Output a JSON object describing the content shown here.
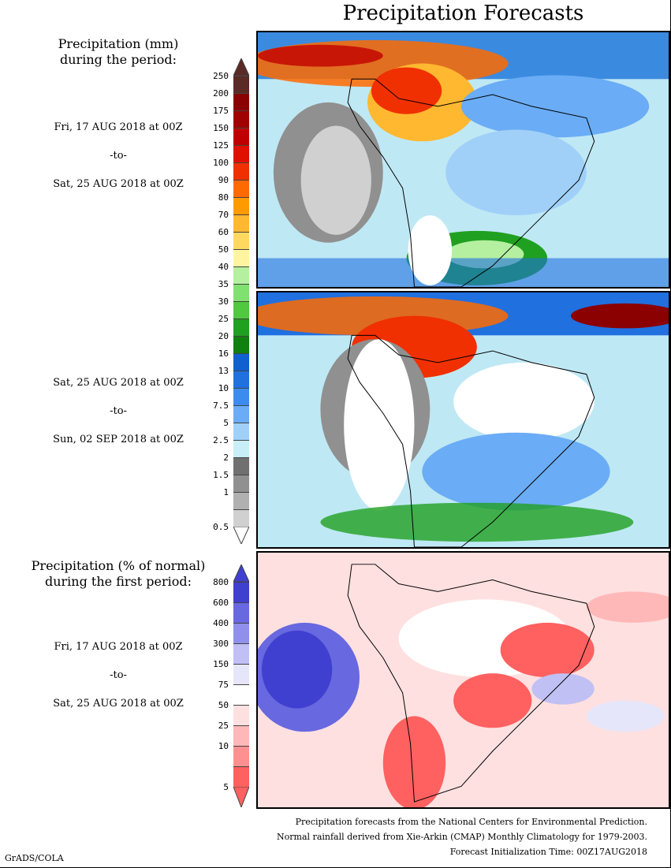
{
  "title": "Precipitation Forecasts",
  "panels": [
    {
      "heading": [
        "Precipitation (mm)",
        "during the period:"
      ],
      "start": "Fri, 17 AUG 2018 at 00Z",
      "sep": "-to-",
      "end": "Sat, 25 AUG 2018 at 00Z"
    },
    {
      "start": "Sat, 25 AUG 2018 at 00Z",
      "sep": "-to-",
      "end": "Sun, 02 SEP 2018 at 00Z"
    },
    {
      "heading": [
        "Precipitation (% of normal)",
        "during the first period:"
      ],
      "start": "Fri, 17 AUG 2018 at 00Z",
      "sep": "-to-",
      "end": "Sat, 25 AUG 2018 at 00Z"
    }
  ],
  "precip_scale": {
    "labels": [
      "250",
      "200",
      "175",
      "150",
      "125",
      "100",
      "90",
      "80",
      "70",
      "60",
      "50",
      "40",
      "35",
      "30",
      "25",
      "20",
      "16",
      "13",
      "10",
      "7.5",
      "5",
      "2.5",
      "2",
      "1.5",
      "1",
      "0.5"
    ],
    "colors": [
      "#5a2a25",
      "#8b0000",
      "#a00000",
      "#c00000",
      "#e01000",
      "#f03000",
      "#ff6a00",
      "#ff9a00",
      "#ffb830",
      "#ffd860",
      "#fff5a0",
      "#b5f0a0",
      "#80e070",
      "#50c840",
      "#20a020",
      "#108010",
      "#1060d0",
      "#2070e0",
      "#3c8cf0",
      "#6aacf5",
      "#a0d0f8",
      "#c8eef8",
      "#707070",
      "#909090",
      "#b0b0b0",
      "#d0d0d0"
    ]
  },
  "percent_scale": {
    "labels": [
      "800",
      "600",
      "400",
      "300",
      "150",
      "75",
      "50",
      "25",
      "10",
      "5"
    ],
    "colors": [
      "#4040d0",
      "#6868e0",
      "#9090ec",
      "#c0c0f4",
      "#e6e6fa",
      "#ffffff",
      "#ffe0e0",
      "#ffb8b8",
      "#ff9090",
      "#ff6060"
    ]
  },
  "footer": [
    "Precipitation forecasts from the National Centers for Environmental Prediction.",
    "Normal rainfall derived from Xie-Arkin (CMAP) Monthly Climatology for 1979-2003.",
    "Forecast Initialization Time: 00Z17AUG2018"
  ],
  "credit": "GrADS/COLA"
}
